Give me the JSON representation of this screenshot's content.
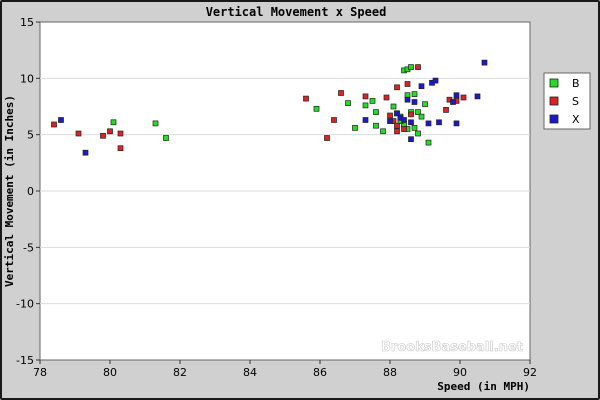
{
  "chart_data": {
    "type": "scatter",
    "title": "Vertical Movement x Speed",
    "xlabel": "Speed (in MPH)",
    "ylabel": "Vertical Movement (in Inches)",
    "xlim": [
      78,
      92
    ],
    "ylim": [
      -15,
      15
    ],
    "x_ticks": [
      78,
      80,
      82,
      84,
      86,
      88,
      90,
      92
    ],
    "y_ticks": [
      -15,
      -10,
      -5,
      0,
      5,
      10,
      15
    ],
    "grid": "horizontal",
    "legend_position": "right",
    "watermark": "BrooksBaseball.net",
    "series": [
      {
        "name": "B",
        "color": "#22dd22",
        "points": [
          [
            80.1,
            6.1
          ],
          [
            81.3,
            6.0
          ],
          [
            81.6,
            4.7
          ],
          [
            85.9,
            7.3
          ],
          [
            86.8,
            7.8
          ],
          [
            87.0,
            5.6
          ],
          [
            87.3,
            7.6
          ],
          [
            87.5,
            8.0
          ],
          [
            87.6,
            5.8
          ],
          [
            87.8,
            5.3
          ],
          [
            87.6,
            7.0
          ],
          [
            88.1,
            7.5
          ],
          [
            88.2,
            6.9
          ],
          [
            88.3,
            6.6
          ],
          [
            88.3,
            6.3
          ],
          [
            88.4,
            5.9
          ],
          [
            88.5,
            5.5
          ],
          [
            88.7,
            5.6
          ],
          [
            88.8,
            5.1
          ],
          [
            88.4,
            10.7
          ],
          [
            88.5,
            10.8
          ],
          [
            88.6,
            11.0
          ],
          [
            88.5,
            8.5
          ],
          [
            88.7,
            8.6
          ],
          [
            88.6,
            7.0
          ],
          [
            88.8,
            7.0
          ],
          [
            88.9,
            6.6
          ],
          [
            89.1,
            4.3
          ],
          [
            89.0,
            7.7
          ],
          [
            88.3,
            6.2
          ]
        ]
      },
      {
        "name": "S",
        "color": "#dd2222",
        "points": [
          [
            78.4,
            5.9
          ],
          [
            79.1,
            5.1
          ],
          [
            79.8,
            4.9
          ],
          [
            80.0,
            5.3
          ],
          [
            80.3,
            5.1
          ],
          [
            80.3,
            3.8
          ],
          [
            85.6,
            8.2
          ],
          [
            86.2,
            4.7
          ],
          [
            86.4,
            6.3
          ],
          [
            86.6,
            8.7
          ],
          [
            87.3,
            8.4
          ],
          [
            87.9,
            8.3
          ],
          [
            88.0,
            6.7
          ],
          [
            88.1,
            6.2
          ],
          [
            88.2,
            5.3
          ],
          [
            88.2,
            5.8
          ],
          [
            88.4,
            5.5
          ],
          [
            88.2,
            9.2
          ],
          [
            88.5,
            9.5
          ],
          [
            88.8,
            11.0
          ],
          [
            89.6,
            7.2
          ],
          [
            89.7,
            8.1
          ],
          [
            89.9,
            8.0
          ],
          [
            90.1,
            8.3
          ],
          [
            88.6,
            6.8
          ]
        ]
      },
      {
        "name": "X",
        "color": "#1a1acc",
        "points": [
          [
            78.6,
            6.3
          ],
          [
            79.3,
            3.4
          ],
          [
            87.3,
            6.3
          ],
          [
            88.0,
            6.2
          ],
          [
            88.2,
            6.9
          ],
          [
            88.3,
            6.5
          ],
          [
            88.4,
            6.3
          ],
          [
            88.6,
            4.6
          ],
          [
            88.5,
            8.1
          ],
          [
            88.7,
            7.9
          ],
          [
            88.9,
            9.3
          ],
          [
            89.1,
            6.0
          ],
          [
            89.2,
            9.6
          ],
          [
            89.3,
            9.8
          ],
          [
            89.4,
            6.1
          ],
          [
            89.8,
            7.9
          ],
          [
            89.9,
            8.5
          ],
          [
            89.9,
            6.0
          ],
          [
            90.5,
            8.4
          ],
          [
            90.7,
            11.4
          ],
          [
            88.6,
            6.1
          ]
        ]
      }
    ]
  }
}
